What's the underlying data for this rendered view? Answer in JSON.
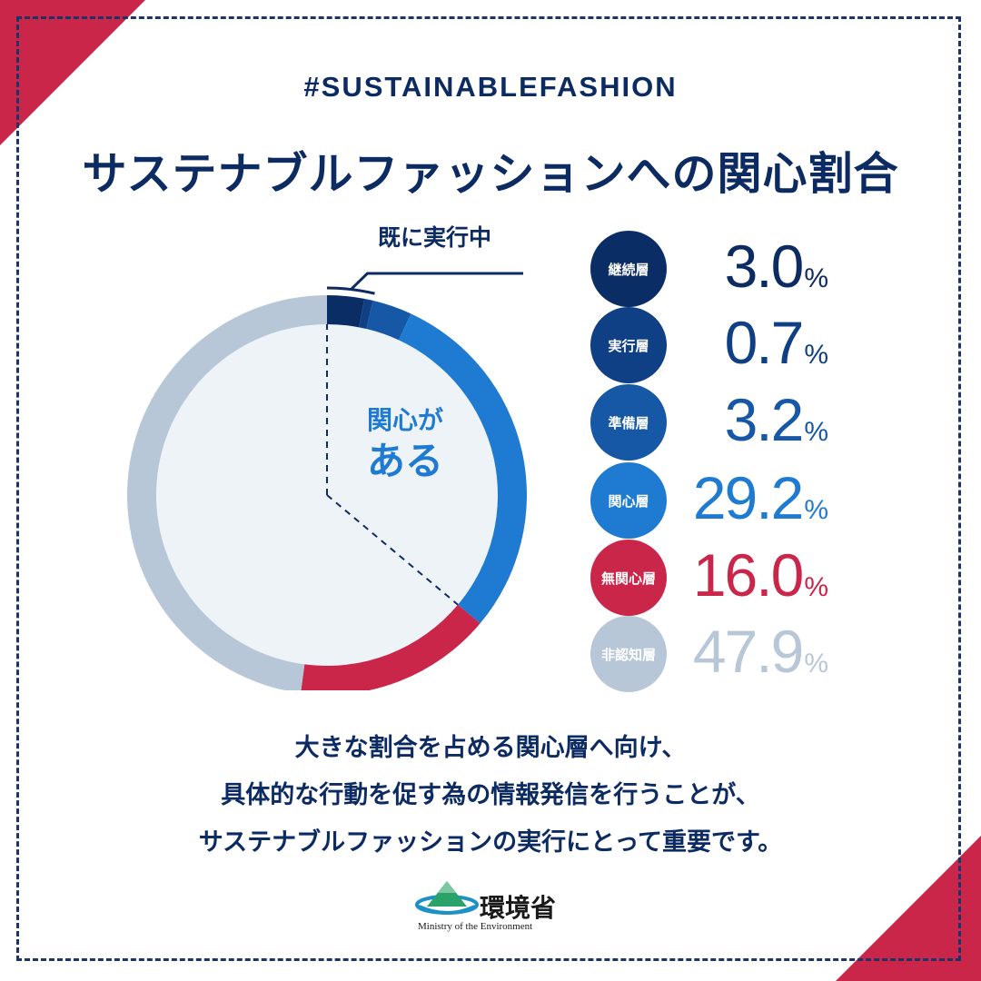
{
  "hashtag": "#SUSTAINABLEFASHION",
  "title": "サステナブルファッションへの関心割合",
  "colors": {
    "navy": "#0d2b63",
    "red": "#c9264a",
    "inner_fill": "#eef3f8",
    "frame": "#1c3566"
  },
  "chart_data": {
    "type": "pie",
    "style": "donut",
    "categories": [
      "継続層",
      "実行層",
      "準備層",
      "関心層",
      "無関心層",
      "非認知層"
    ],
    "values": [
      3.0,
      0.7,
      3.2,
      29.2,
      16.0,
      47.9
    ],
    "colors": [
      "#0b2d66",
      "#0f3f84",
      "#1657a6",
      "#1f7bd2",
      "#c9264a",
      "#b8c7d7"
    ],
    "unit": "%",
    "annotations": {
      "top_label": "既に実行中",
      "center_line1": "関心が",
      "center_line2": "ある"
    }
  },
  "legend": {
    "pct_symbol": "%",
    "items": [
      {
        "label": "継続層",
        "value": "3.0",
        "color": "#0b2d66",
        "text_color": "#0d2b63"
      },
      {
        "label": "実行層",
        "value": "0.7",
        "color": "#0f3f84",
        "text_color": "#0f3f84"
      },
      {
        "label": "準備層",
        "value": "3.2",
        "color": "#1657a6",
        "text_color": "#1657a6"
      },
      {
        "label": "関心層",
        "value": "29.2",
        "color": "#1f7bd2",
        "text_color": "#1f7bd2"
      },
      {
        "label": "無関心層",
        "value": "16.0",
        "color": "#c9264a",
        "text_color": "#c9264a"
      },
      {
        "label": "非認知層",
        "value": "47.9",
        "color": "#b8c7d7",
        "text_color": "#b8c7d7"
      }
    ]
  },
  "body": {
    "line1": "大きな割合を占める関心層へ向け、",
    "line2": "具体的な行動を促す為の情報発信を行うことが、",
    "line3": "サステナブルファッションの実行にとって重要です。"
  },
  "logo": {
    "name": "環境省",
    "subtitle": "Ministry of the Environment"
  }
}
